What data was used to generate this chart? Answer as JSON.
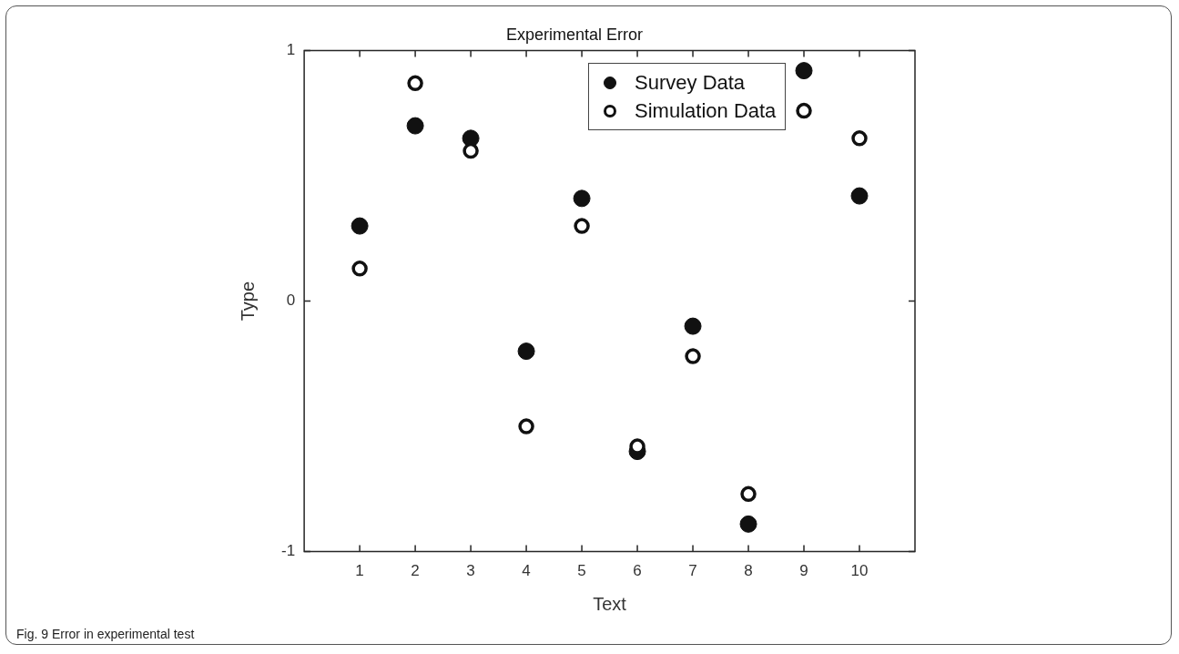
{
  "chart_data": {
    "type": "scatter",
    "title": "Experimental Error",
    "xlabel": "Text",
    "ylabel": "Type",
    "x": [
      1,
      2,
      3,
      4,
      5,
      6,
      7,
      8,
      9,
      10
    ],
    "series": [
      {
        "name": "Survey Data",
        "color": "#111111",
        "values": [
          0.3,
          0.7,
          0.65,
          -0.2,
          0.41,
          -0.6,
          -0.1,
          -0.89,
          0.92,
          0.42
        ]
      },
      {
        "name": "Simulation Data",
        "color": "#111111",
        "values": [
          0.13,
          0.87,
          0.6,
          -0.5,
          0.3,
          -0.58,
          -0.22,
          -0.77,
          0.76,
          0.65
        ]
      }
    ],
    "xlim": [
      0,
      11
    ],
    "xticks": [
      1,
      2,
      3,
      4,
      5,
      6,
      7,
      8,
      9,
      10
    ],
    "ylim": [
      -1,
      1
    ],
    "yticks": [
      -1,
      0,
      1
    ],
    "grid": false,
    "legend": "top",
    "marker": "circle",
    "annotations": [
      "Fig. 9 Error in experimental test"
    ]
  }
}
